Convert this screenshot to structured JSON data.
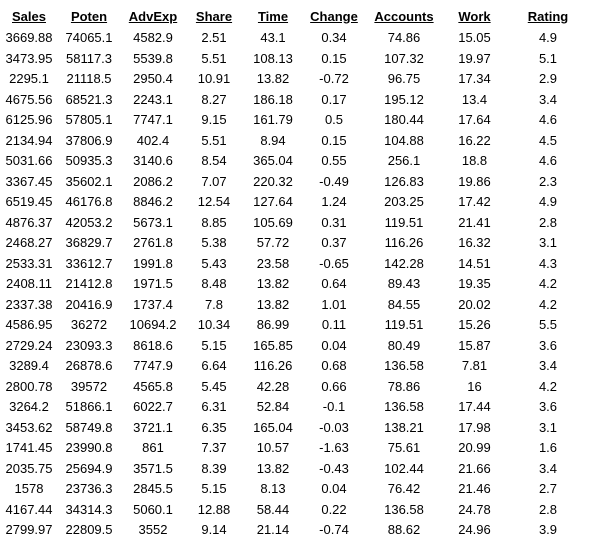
{
  "table": {
    "columns": [
      "Sales",
      "Poten",
      "AdvExp",
      "Share",
      "Time",
      "Change",
      "Accounts",
      "Work",
      "Rating"
    ],
    "rows": [
      [
        "3669.88",
        "74065.1",
        "4582.9",
        "2.51",
        "43.1",
        "0.34",
        "74.86",
        "15.05",
        "4.9"
      ],
      [
        "3473.95",
        "58117.3",
        "5539.8",
        "5.51",
        "108.13",
        "0.15",
        "107.32",
        "19.97",
        "5.1"
      ],
      [
        "2295.1",
        "21118.5",
        "2950.4",
        "10.91",
        "13.82",
        "-0.72",
        "96.75",
        "17.34",
        "2.9"
      ],
      [
        "4675.56",
        "68521.3",
        "2243.1",
        "8.27",
        "186.18",
        "0.17",
        "195.12",
        "13.4",
        "3.4"
      ],
      [
        "6125.96",
        "57805.1",
        "7747.1",
        "9.15",
        "161.79",
        "0.5",
        "180.44",
        "17.64",
        "4.6"
      ],
      [
        "2134.94",
        "37806.9",
        "402.4",
        "5.51",
        "8.94",
        "0.15",
        "104.88",
        "16.22",
        "4.5"
      ],
      [
        "5031.66",
        "50935.3",
        "3140.6",
        "8.54",
        "365.04",
        "0.55",
        "256.1",
        "18.8",
        "4.6"
      ],
      [
        "3367.45",
        "35602.1",
        "2086.2",
        "7.07",
        "220.32",
        "-0.49",
        "126.83",
        "19.86",
        "2.3"
      ],
      [
        "6519.45",
        "46176.8",
        "8846.2",
        "12.54",
        "127.64",
        "1.24",
        "203.25",
        "17.42",
        "4.9"
      ],
      [
        "4876.37",
        "42053.2",
        "5673.1",
        "8.85",
        "105.69",
        "0.31",
        "119.51",
        "21.41",
        "2.8"
      ],
      [
        "2468.27",
        "36829.7",
        "2761.8",
        "5.38",
        "57.72",
        "0.37",
        "116.26",
        "16.32",
        "3.1"
      ],
      [
        "2533.31",
        "33612.7",
        "1991.8",
        "5.43",
        "23.58",
        "-0.65",
        "142.28",
        "14.51",
        "4.3"
      ],
      [
        "2408.11",
        "21412.8",
        "1971.5",
        "8.48",
        "13.82",
        "0.64",
        "89.43",
        "19.35",
        "4.2"
      ],
      [
        "2337.38",
        "20416.9",
        "1737.4",
        "7.8",
        "13.82",
        "1.01",
        "84.55",
        "20.02",
        "4.2"
      ],
      [
        "4586.95",
        "36272",
        "10694.2",
        "10.34",
        "86.99",
        "0.11",
        "119.51",
        "15.26",
        "5.5"
      ],
      [
        "2729.24",
        "23093.3",
        "8618.6",
        "5.15",
        "165.85",
        "0.04",
        "80.49",
        "15.87",
        "3.6"
      ],
      [
        "3289.4",
        "26878.6",
        "7747.9",
        "6.64",
        "116.26",
        "0.68",
        "136.58",
        "7.81",
        "3.4"
      ],
      [
        "2800.78",
        "39572",
        "4565.8",
        "5.45",
        "42.28",
        "0.66",
        "78.86",
        "16",
        "4.2"
      ],
      [
        "3264.2",
        "51866.1",
        "6022.7",
        "6.31",
        "52.84",
        "-0.1",
        "136.58",
        "17.44",
        "3.6"
      ],
      [
        "3453.62",
        "58749.8",
        "3721.1",
        "6.35",
        "165.04",
        "-0.03",
        "138.21",
        "17.98",
        "3.1"
      ],
      [
        "1741.45",
        "23990.8",
        "861",
        "7.37",
        "10.57",
        "-1.63",
        "75.61",
        "20.99",
        "1.6"
      ],
      [
        "2035.75",
        "25694.9",
        "3571.5",
        "8.39",
        "13.82",
        "-0.43",
        "102.44",
        "21.66",
        "3.4"
      ],
      [
        "1578",
        "23736.3",
        "2845.5",
        "5.15",
        "8.13",
        "0.04",
        "76.42",
        "21.46",
        "2.7"
      ],
      [
        "4167.44",
        "34314.3",
        "5060.1",
        "12.88",
        "58.44",
        "0.22",
        "136.58",
        "24.78",
        "2.8"
      ],
      [
        "2799.97",
        "22809.5",
        "3552",
        "9.14",
        "21.14",
        "-0.74",
        "88.62",
        "24.96",
        "3.9"
      ]
    ]
  }
}
